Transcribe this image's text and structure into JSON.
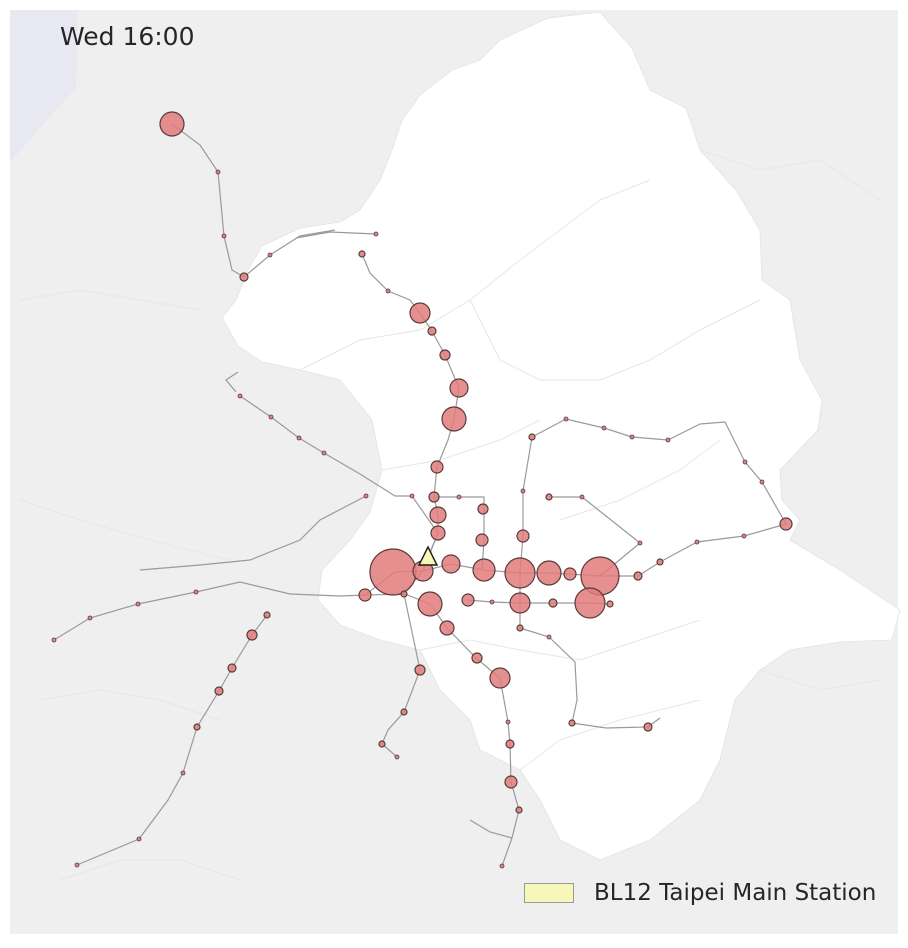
{
  "map": {
    "time_label": "Wed 16:00",
    "legend": {
      "label": "BL12 Taipei Main Station",
      "swatch_color": "#f7f7ba"
    },
    "colors": {
      "background": "#efefef",
      "city_area": "#ffffff",
      "sea": "#e8e8f2",
      "station_fill": "#e07b7b",
      "station_stroke": "#5a3a3a",
      "metro_line": "#9a9a9a",
      "selected_marker": "#f7f7ba"
    },
    "selected_station_icon": "triangle-marker-icon"
  }
}
